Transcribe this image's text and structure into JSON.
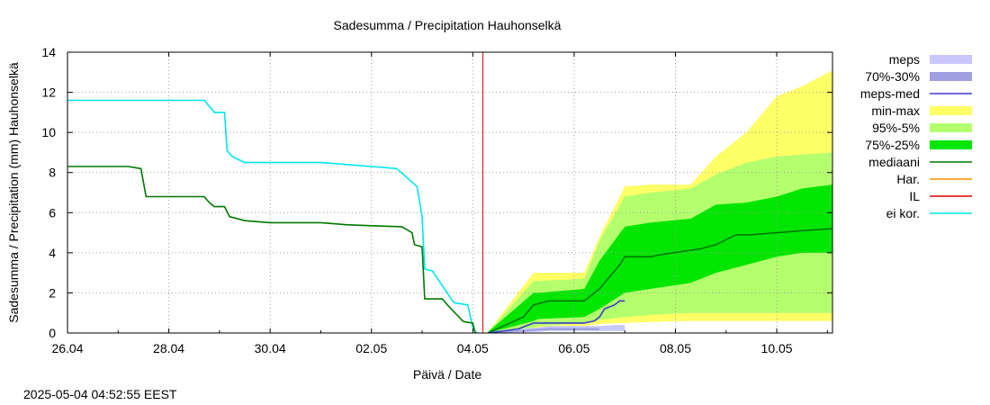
{
  "timestamp": "2025-05-04 04:52:55 EEST",
  "colors": {
    "meps": "#c8c8ff",
    "p70_30": "#a0a0e0",
    "meps_med": "#3c3cc8",
    "minmax": "#ffff66",
    "p95_5": "#b4ff6e",
    "p75_25": "#00e600",
    "median": "#007800",
    "har": "#ff8c00",
    "il": "#e00000",
    "eikor": "#00e6f0"
  },
  "chart_data": {
    "type": "area",
    "title": "Sadesumma / Precipitation  Hauhonselkä",
    "xlabel": "Päivä / Date",
    "ylabel": "Sadesumma / Precipitation (mm)  Hauhonselkä",
    "xlim": [
      0,
      15.1
    ],
    "ylim": [
      0,
      14
    ],
    "x_ticks": [
      0,
      2,
      4,
      6,
      8,
      10,
      12,
      14
    ],
    "x_tick_labels": [
      "26.04",
      "28.04",
      "30.04",
      "02.05",
      "04.05",
      "06.05",
      "08.05",
      "10.05"
    ],
    "y_ticks": [
      0,
      2,
      4,
      6,
      8,
      10,
      12,
      14
    ],
    "y_tick_labels": [
      "0",
      "2",
      "4",
      "6",
      "8",
      "10",
      "12",
      "14"
    ],
    "forecast_start_x": 8.2,
    "legend": [
      {
        "key": "meps",
        "label": "meps",
        "kind": "box"
      },
      {
        "key": "p70_30",
        "label": "70%-30%",
        "kind": "box"
      },
      {
        "key": "meps_med",
        "label": "meps-med",
        "kind": "line"
      },
      {
        "key": "minmax",
        "label": "min-max",
        "kind": "box"
      },
      {
        "key": "p95_5",
        "label": "95%-5%",
        "kind": "box"
      },
      {
        "key": "p75_25",
        "label": "75%-25%",
        "kind": "box"
      },
      {
        "key": "median",
        "label": "mediaani",
        "kind": "line"
      },
      {
        "key": "har",
        "label": "Har.",
        "kind": "line"
      },
      {
        "key": "il",
        "label": "IL",
        "kind": "line"
      },
      {
        "key": "eikor",
        "label": "ei kor.",
        "kind": "line"
      }
    ],
    "bands": [
      {
        "name": "min-max",
        "color_key": "minmax",
        "x": [
          8.3,
          9.2,
          9.3,
          10.2,
          10.5,
          11.0,
          11.5,
          12.3,
          12.8,
          13.4,
          14.0,
          14.5,
          15.1
        ],
        "low": [
          0.0,
          0.15,
          0.25,
          0.35,
          0.45,
          0.5,
          0.55,
          0.6,
          0.6,
          0.6,
          0.6,
          0.6,
          0.6
        ],
        "high": [
          0.05,
          3.0,
          3.0,
          3.0,
          4.8,
          7.3,
          7.4,
          7.4,
          8.8,
          10.0,
          11.8,
          12.3,
          13.1
        ]
      },
      {
        "name": "95%-5%",
        "color_key": "p95_5",
        "x": [
          8.3,
          9.2,
          9.3,
          10.2,
          10.5,
          11.0,
          11.5,
          12.3,
          12.8,
          13.4,
          14.0,
          14.5,
          15.1
        ],
        "low": [
          0.0,
          0.25,
          0.35,
          0.5,
          0.65,
          0.8,
          0.9,
          1.0,
          1.0,
          1.0,
          1.0,
          1.0,
          1.0
        ],
        "high": [
          0.05,
          2.6,
          2.6,
          2.7,
          4.6,
          6.8,
          7.0,
          7.2,
          7.9,
          8.5,
          8.8,
          8.9,
          9.0
        ]
      },
      {
        "name": "75%-25%",
        "color_key": "p75_25",
        "x": [
          8.3,
          9.2,
          9.3,
          10.2,
          10.5,
          11.0,
          11.5,
          12.3,
          12.8,
          13.4,
          14.0,
          14.5,
          15.1
        ],
        "low": [
          0.0,
          0.6,
          0.7,
          0.8,
          1.2,
          2.0,
          2.2,
          2.5,
          3.0,
          3.4,
          3.8,
          4.0,
          4.0
        ],
        "high": [
          0.05,
          2.0,
          2.0,
          2.2,
          3.6,
          5.3,
          5.5,
          5.7,
          6.4,
          6.5,
          6.8,
          7.2,
          7.4
        ]
      },
      {
        "name": "meps",
        "color_key": "meps",
        "x": [
          8.4,
          9.2,
          9.5,
          10.5,
          10.8,
          11.0
        ],
        "low": [
          0.0,
          0.05,
          0.1,
          0.1,
          0.1,
          0.1
        ],
        "high": [
          0.1,
          0.25,
          0.35,
          0.35,
          0.4,
          0.4
        ]
      },
      {
        "name": "70%-30%",
        "color_key": "p70_30",
        "x": [
          8.5,
          9.2,
          9.5,
          10.5
        ],
        "low": [
          0.0,
          0.1,
          0.15,
          0.15
        ],
        "high": [
          0.05,
          0.2,
          0.25,
          0.25
        ]
      }
    ],
    "series": [
      {
        "name": "ei kor.",
        "color_key": "eikor",
        "x": [
          0,
          2.7,
          2.8,
          2.9,
          3.1,
          3.15,
          3.25,
          3.5,
          4.0,
          5.0,
          5.5,
          6.0,
          6.5,
          6.9,
          7.0,
          7.05,
          7.1,
          7.2,
          7.6,
          7.65,
          7.9,
          8.0,
          8.05,
          8.1
        ],
        "y": [
          11.6,
          11.6,
          11.3,
          11.0,
          11.0,
          9.1,
          8.8,
          8.5,
          8.5,
          8.5,
          8.4,
          8.3,
          8.2,
          7.3,
          5.8,
          3.2,
          3.15,
          3.1,
          1.6,
          1.5,
          1.4,
          0.3,
          0.05,
          0.0
        ]
      },
      {
        "name": "mediaani (obs)",
        "color_key": "median",
        "x": [
          0,
          1.2,
          1.45,
          1.55,
          2.7,
          2.8,
          2.9,
          3.1,
          3.2,
          3.5,
          4.0,
          5.0,
          5.5,
          6.0,
          6.6,
          6.8,
          6.85,
          7.0,
          7.05,
          7.4,
          7.5,
          7.8,
          7.85,
          8.0,
          8.05
        ],
        "y": [
          8.3,
          8.3,
          8.2,
          6.8,
          6.8,
          6.5,
          6.3,
          6.3,
          5.8,
          5.6,
          5.5,
          5.5,
          5.4,
          5.35,
          5.3,
          5.0,
          4.4,
          4.3,
          1.7,
          1.7,
          1.4,
          0.6,
          0.55,
          0.5,
          0.0
        ]
      },
      {
        "name": "mediaani (forecast)",
        "color_key": "median",
        "x": [
          8.3,
          9.0,
          9.2,
          9.5,
          10.2,
          10.5,
          10.9,
          11.0,
          11.5,
          11.7,
          12.5,
          12.8,
          13.2,
          13.5,
          14.0,
          14.5,
          15.1
        ],
        "y": [
          0.0,
          0.8,
          1.4,
          1.6,
          1.6,
          2.2,
          3.4,
          3.8,
          3.8,
          3.9,
          4.2,
          4.4,
          4.9,
          4.9,
          5.0,
          5.1,
          5.2
        ]
      },
      {
        "name": "meps-med",
        "color_key": "meps_med",
        "x": [
          8.3,
          8.9,
          9.0,
          9.2,
          10.2,
          10.4,
          10.5,
          10.6,
          10.8,
          10.9,
          11.0
        ],
        "y": [
          0.0,
          0.2,
          0.3,
          0.5,
          0.5,
          0.6,
          0.8,
          1.2,
          1.4,
          1.6,
          1.6
        ]
      }
    ]
  }
}
